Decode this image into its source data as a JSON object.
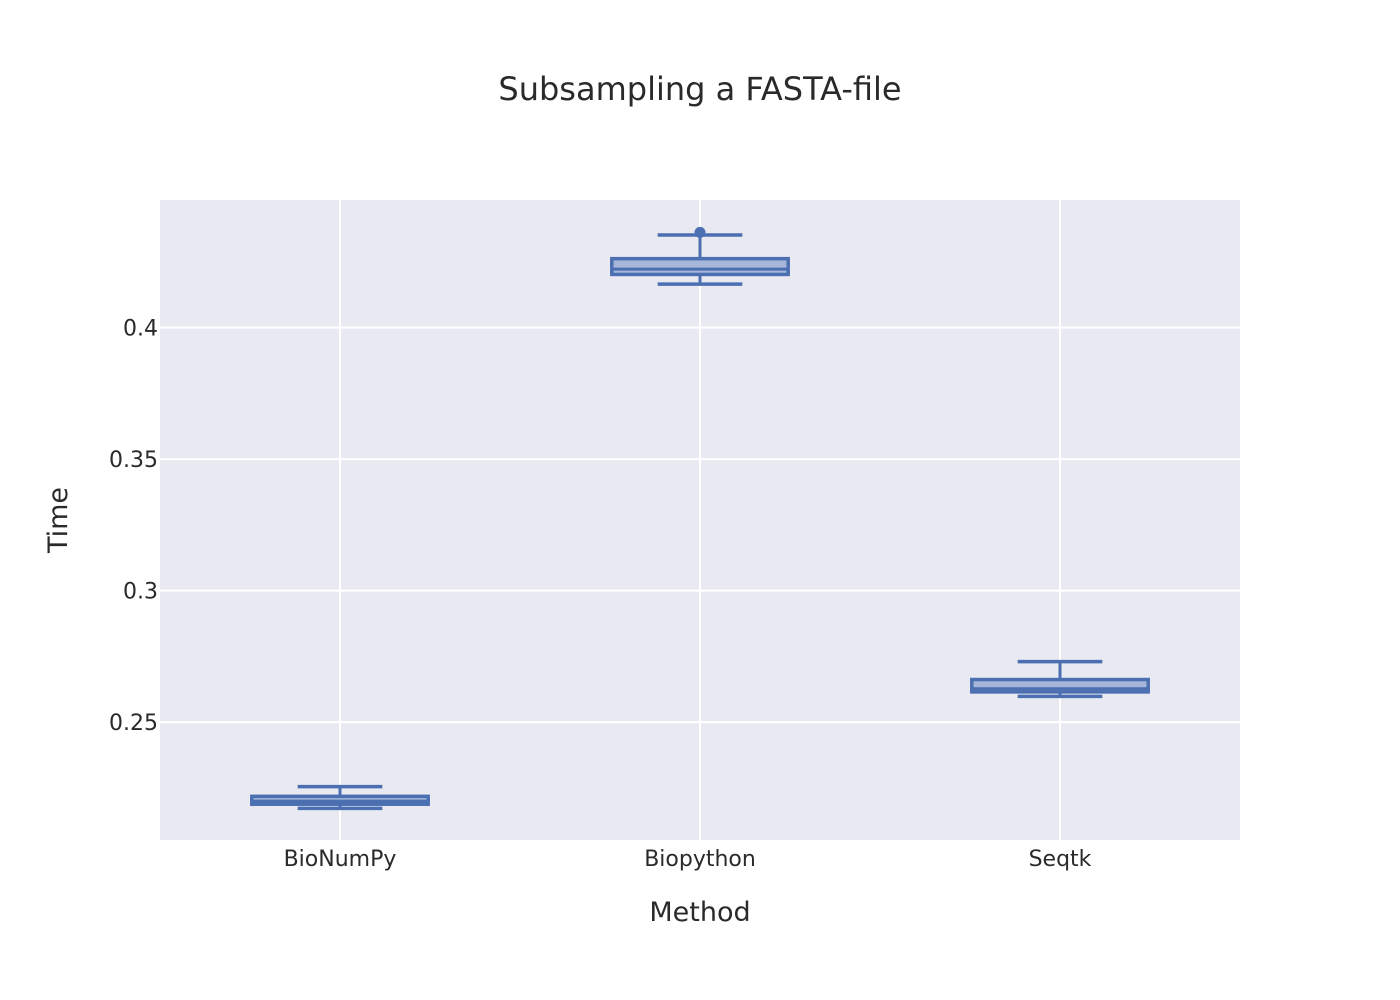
{
  "chart_data": {
    "type": "box",
    "title": "Subsampling a FASTA-file",
    "xlabel": "Method",
    "ylabel": "Time",
    "ylim": [
      0.2052,
      0.4485
    ],
    "yticks": [
      0.25,
      0.3,
      0.35,
      0.4
    ],
    "ytick_labels": [
      "0.25",
      "0.3",
      "0.35",
      "0.4"
    ],
    "categories": [
      "BioNumPy",
      "Biopython",
      "Seqtk"
    ],
    "grid": true,
    "plot_background": "#e9e9f2",
    "box_color": "#4c6fb1",
    "box_fill": "#a5b6d8",
    "series": [
      {
        "boxes": [
          {
            "category": "BioNumPy",
            "min": 0.2172,
            "q1": 0.2188,
            "median": 0.22,
            "q3": 0.2218,
            "max": 0.2255,
            "outliers": []
          },
          {
            "category": "Biopython",
            "min": 0.4165,
            "q1": 0.4202,
            "median": 0.4222,
            "q3": 0.4262,
            "max": 0.4352,
            "outliers": [
              0.4362
            ]
          },
          {
            "category": "Seqtk",
            "min": 0.2598,
            "q1": 0.2615,
            "median": 0.2627,
            "q3": 0.2662,
            "max": 0.273,
            "outliers": []
          }
        ]
      }
    ]
  }
}
